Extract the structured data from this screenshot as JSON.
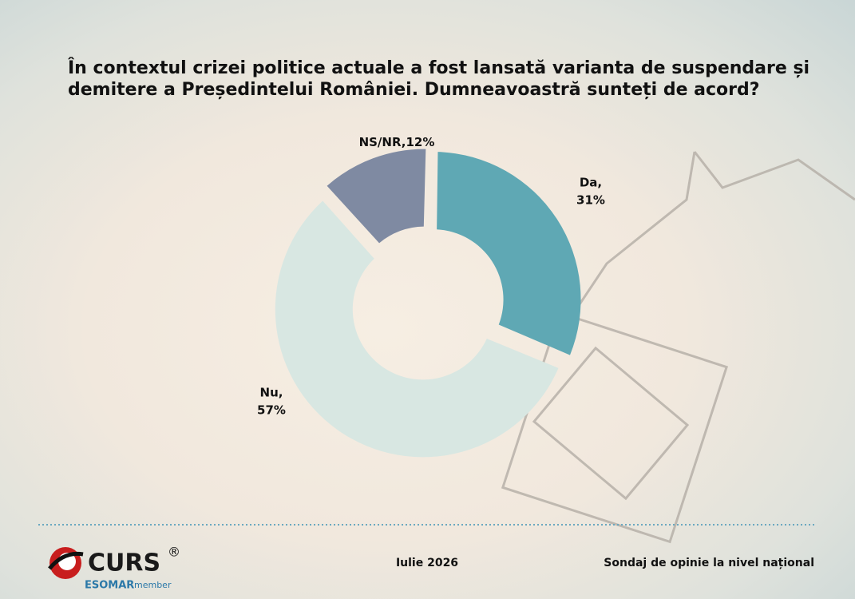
{
  "chart_data": {
    "type": "donut",
    "title": "În contextul crizei politice actuale a fost lansată varianta de suspendare și demitere a Președintelui României. Dumneavoastră sunteți de acord?",
    "categories": [
      "Da,",
      "Nu,",
      "NS/NR,"
    ],
    "values": [
      31,
      57,
      12
    ],
    "value_labels": [
      "31%",
      "57%",
      "12%"
    ],
    "colors": [
      "#5fa8b4",
      "#d8e7e2",
      "#7f8aa2"
    ]
  },
  "footer": {
    "logo": "CURS",
    "registered": "®",
    "esomar": "ESOMAR",
    "member": "member",
    "date": "Iulie 2026",
    "note": "Sondaj de opinie la nivel național"
  }
}
